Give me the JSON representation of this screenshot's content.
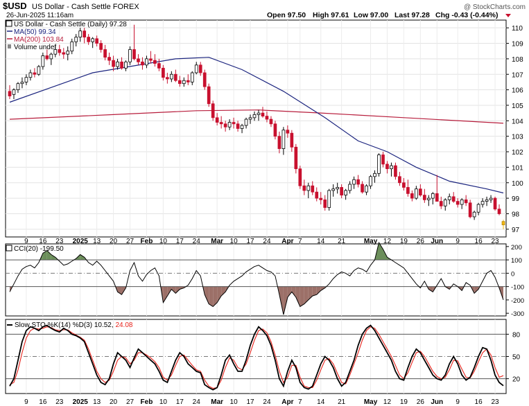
{
  "header": {
    "symbol": "$USD",
    "name": "US Dollar - Cash Settle FOREX",
    "datetime": "26-Jun-2025 11:16am",
    "watermark": "@ StockCharts.com",
    "open": "Open 97.50",
    "high": "High 97.61",
    "low": "Low 97.00",
    "last": "Last 97.28",
    "chg": "Chg -0.43 (-0.44%)"
  },
  "price_legend": {
    "title": "US Dollar - Cash Settle (Daily) 97.28",
    "ma50": "MA(50) 99.34",
    "ma200": "MA(200) 103.84",
    "volume": "Volume undef"
  },
  "cci_legend": "CCI(20) -199.50",
  "sto_legend_k": "Slow STO %K(14) %D(3) 10.52,",
  "sto_legend_d": "24.08",
  "colors": {
    "up": "#ffffff",
    "down": "#c8102e",
    "today": "#f2b90f",
    "ma50": "#1a237e",
    "ma200": "#b71c3b",
    "cci_pos": "#6b8e5a",
    "cci_neg": "#9c7068",
    "sto_k": "#000000",
    "sto_d": "#e8231b"
  },
  "x_axis_labels": [
    "9",
    "16",
    "23",
    "2025",
    "13",
    "20",
    "27",
    "Feb",
    "10",
    "17",
    "24",
    "Mar",
    "10",
    "17",
    "24",
    "Apr",
    "7",
    "14",
    "21",
    "May",
    "12",
    "19",
    "26",
    "Jun",
    "9",
    "16",
    "23"
  ],
  "chart_data": [
    {
      "type": "candlestick",
      "title": "US Dollar - Cash Settle (Daily) 97.28",
      "ylim": [
        96.5,
        110.5
      ],
      "y_ticks": [
        97,
        98,
        99,
        100,
        101,
        102,
        103,
        104,
        105,
        106,
        107,
        108,
        109,
        110
      ],
      "ohlc": [
        [
          105.9,
          106.3,
          105.4,
          105.6
        ],
        [
          105.7,
          106.1,
          105.4,
          106.0
        ],
        [
          106.0,
          106.5,
          105.8,
          106.4
        ],
        [
          106.4,
          106.8,
          106.1,
          106.5
        ],
        [
          106.5,
          107.0,
          106.3,
          106.8
        ],
        [
          106.8,
          107.3,
          106.6,
          107.1
        ],
        [
          107.1,
          107.4,
          106.8,
          107.0
        ],
        [
          107.0,
          107.6,
          106.9,
          107.5
        ],
        [
          107.5,
          108.4,
          107.3,
          108.2
        ],
        [
          108.2,
          108.6,
          107.9,
          108.0
        ],
        [
          108.0,
          108.4,
          107.6,
          108.3
        ],
        [
          108.3,
          108.9,
          108.1,
          108.6
        ],
        [
          108.6,
          108.9,
          108.2,
          108.4
        ],
        [
          108.4,
          108.7,
          108.0,
          108.3
        ],
        [
          108.3,
          108.8,
          107.9,
          108.5
        ],
        [
          108.5,
          109.3,
          108.3,
          109.1
        ],
        [
          109.1,
          109.6,
          108.8,
          109.4
        ],
        [
          109.4,
          110.0,
          109.1,
          109.8
        ],
        [
          109.8,
          110.0,
          109.0,
          109.4
        ],
        [
          109.4,
          109.6,
          108.9,
          109.1
        ],
        [
          109.1,
          109.4,
          108.7,
          109.3
        ],
        [
          109.3,
          109.5,
          108.8,
          109.0
        ],
        [
          109.0,
          109.2,
          108.4,
          108.6
        ],
        [
          108.6,
          108.9,
          107.9,
          108.1
        ],
        [
          108.1,
          108.4,
          107.6,
          107.9
        ],
        [
          107.9,
          108.2,
          107.2,
          107.5
        ],
        [
          107.5,
          108.0,
          107.3,
          107.8
        ],
        [
          107.8,
          108.1,
          107.3,
          107.4
        ],
        [
          107.4,
          107.9,
          107.2,
          107.8
        ],
        [
          107.8,
          108.8,
          107.6,
          108.6
        ],
        [
          108.6,
          110.2,
          107.9,
          108.0
        ],
        [
          108.0,
          108.3,
          107.6,
          107.8
        ],
        [
          107.8,
          108.1,
          107.3,
          107.6
        ],
        [
          107.6,
          108.2,
          107.4,
          108.0
        ],
        [
          108.0,
          108.5,
          107.7,
          107.9
        ],
        [
          107.9,
          108.3,
          107.5,
          107.7
        ],
        [
          107.7,
          108.0,
          107.2,
          107.4
        ],
        [
          107.4,
          107.6,
          106.6,
          106.8
        ],
        [
          106.8,
          107.1,
          106.4,
          106.7
        ],
        [
          106.7,
          107.2,
          106.5,
          107.0
        ],
        [
          107.0,
          107.3,
          106.5,
          106.6
        ],
        [
          106.6,
          106.9,
          106.2,
          106.4
        ],
        [
          106.4,
          106.8,
          106.2,
          106.6
        ],
        [
          106.6,
          107.0,
          106.3,
          106.5
        ],
        [
          106.5,
          107.2,
          106.3,
          107.1
        ],
        [
          107.1,
          107.8,
          107.0,
          107.6
        ],
        [
          107.6,
          107.8,
          106.9,
          107.1
        ],
        [
          107.1,
          107.3,
          106.0,
          106.2
        ],
        [
          106.2,
          106.4,
          104.9,
          105.1
        ],
        [
          105.1,
          105.3,
          104.0,
          104.2
        ],
        [
          104.2,
          104.5,
          103.7,
          103.9
        ],
        [
          103.9,
          104.3,
          103.5,
          103.8
        ],
        [
          103.8,
          104.0,
          103.3,
          103.6
        ],
        [
          103.6,
          104.1,
          103.4,
          103.9
        ],
        [
          103.9,
          104.2,
          103.5,
          103.8
        ],
        [
          103.8,
          104.0,
          103.3,
          103.5
        ],
        [
          103.5,
          103.8,
          103.2,
          103.7
        ],
        [
          103.7,
          104.2,
          103.5,
          104.1
        ],
        [
          104.1,
          104.4,
          103.8,
          104.2
        ],
        [
          104.2,
          104.6,
          104.0,
          104.4
        ],
        [
          104.4,
          104.7,
          104.0,
          104.5
        ],
        [
          104.5,
          104.9,
          104.2,
          104.3
        ],
        [
          104.3,
          104.6,
          103.9,
          104.1
        ],
        [
          104.1,
          104.3,
          103.6,
          103.8
        ],
        [
          103.8,
          104.0,
          102.8,
          103.0
        ],
        [
          103.0,
          103.3,
          101.9,
          102.2
        ],
        [
          102.2,
          103.6,
          101.8,
          103.4
        ],
        [
          103.4,
          103.7,
          102.9,
          103.2
        ],
        [
          103.2,
          103.4,
          102.0,
          102.3
        ],
        [
          102.3,
          102.5,
          100.6,
          100.9
        ],
        [
          100.9,
          101.1,
          99.6,
          99.8
        ],
        [
          99.8,
          100.2,
          99.2,
          99.5
        ],
        [
          99.5,
          100.0,
          99.0,
          99.8
        ],
        [
          99.8,
          100.1,
          99.2,
          99.4
        ],
        [
          99.4,
          99.7,
          98.8,
          99.0
        ],
        [
          99.0,
          99.4,
          98.6,
          98.9
        ],
        [
          98.9,
          99.2,
          98.2,
          98.4
        ],
        [
          98.4,
          99.6,
          98.2,
          99.5
        ],
        [
          99.5,
          99.9,
          99.1,
          99.6
        ],
        [
          99.6,
          100.0,
          99.3,
          99.7
        ],
        [
          99.7,
          99.9,
          99.0,
          99.2
        ],
        [
          99.2,
          99.6,
          98.9,
          99.5
        ],
        [
          99.5,
          100.1,
          99.3,
          99.9
        ],
        [
          99.9,
          100.4,
          99.6,
          100.2
        ],
        [
          100.2,
          100.5,
          99.7,
          99.9
        ],
        [
          99.9,
          100.1,
          99.3,
          99.4
        ],
        [
          99.4,
          99.9,
          99.2,
          99.8
        ],
        [
          99.8,
          100.5,
          99.6,
          100.4
        ],
        [
          100.4,
          100.8,
          100.0,
          100.6
        ],
        [
          100.6,
          101.9,
          100.4,
          101.8
        ],
        [
          101.8,
          102.0,
          101.0,
          101.2
        ],
        [
          101.2,
          101.4,
          100.6,
          100.9
        ],
        [
          100.9,
          101.3,
          100.4,
          101.1
        ],
        [
          101.1,
          101.3,
          100.2,
          100.4
        ],
        [
          100.4,
          100.7,
          99.8,
          100.0
        ],
        [
          100.0,
          100.3,
          99.5,
          99.7
        ],
        [
          99.7,
          100.2,
          99.1,
          99.3
        ],
        [
          99.3,
          99.5,
          98.8,
          99.0
        ],
        [
          99.0,
          99.8,
          98.9,
          99.6
        ],
        [
          99.6,
          99.9,
          99.1,
          99.2
        ],
        [
          99.2,
          99.6,
          98.7,
          98.9
        ],
        [
          98.9,
          99.2,
          98.5,
          99.0
        ],
        [
          99.0,
          99.4,
          98.6,
          99.3
        ],
        [
          99.3,
          100.5,
          98.8,
          98.8
        ],
        [
          98.8,
          99.1,
          98.3,
          98.5
        ],
        [
          98.5,
          99.0,
          98.2,
          98.9
        ],
        [
          98.9,
          99.3,
          98.6,
          99.1
        ],
        [
          99.1,
          99.4,
          98.7,
          98.8
        ],
        [
          98.8,
          99.0,
          98.4,
          98.6
        ],
        [
          98.6,
          99.0,
          98.3,
          98.9
        ],
        [
          98.9,
          99.2,
          98.5,
          98.7
        ],
        [
          98.7,
          98.9,
          97.7,
          97.8
        ],
        [
          97.8,
          98.2,
          97.6,
          98.1
        ],
        [
          98.1,
          98.7,
          97.9,
          98.6
        ],
        [
          98.6,
          99.0,
          98.4,
          98.8
        ],
        [
          98.8,
          99.1,
          98.5,
          98.9
        ],
        [
          98.9,
          99.2,
          98.7,
          99.0
        ],
        [
          99.0,
          99.1,
          98.2,
          98.3
        ],
        [
          98.3,
          98.6,
          97.9,
          98.0
        ],
        [
          97.5,
          97.61,
          97.0,
          97.28
        ]
      ],
      "ma50": [
        [
          0,
          105.2
        ],
        [
          20,
          107.1
        ],
        [
          40,
          108.0
        ],
        [
          48,
          108.1
        ],
        [
          56,
          107.3
        ],
        [
          66,
          105.9
        ],
        [
          76,
          104.2
        ],
        [
          84,
          102.7
        ],
        [
          91,
          102.0
        ],
        [
          98,
          101.0
        ],
        [
          106,
          100.1
        ],
        [
          115,
          99.6
        ],
        [
          119,
          99.34
        ]
      ],
      "ma200": [
        [
          0,
          104.1
        ],
        [
          25,
          104.4
        ],
        [
          45,
          104.65
        ],
        [
          60,
          104.7
        ],
        [
          75,
          104.5
        ],
        [
          95,
          104.2
        ],
        [
          119,
          103.84
        ]
      ]
    },
    {
      "type": "line",
      "title": "CCI(20) -199.50",
      "ylim": [
        -320,
        220
      ],
      "y_ticks": [
        200,
        100,
        0,
        -100,
        -200,
        -300
      ],
      "levels": [
        100,
        0,
        -100
      ],
      "values": [
        -140,
        -80,
        -20,
        30,
        50,
        60,
        40,
        80,
        150,
        170,
        140,
        120,
        90,
        60,
        70,
        90,
        110,
        140,
        120,
        80,
        60,
        90,
        60,
        20,
        -20,
        -60,
        -140,
        -160,
        -110,
        20,
        80,
        -20,
        -60,
        -10,
        20,
        40,
        -20,
        -220,
        -170,
        -120,
        -150,
        -120,
        -110,
        -90,
        -40,
        20,
        -20,
        -160,
        -230,
        -250,
        -220,
        -170,
        -140,
        -90,
        -60,
        -40,
        -20,
        10,
        30,
        50,
        60,
        40,
        20,
        10,
        -20,
        -160,
        -310,
        -180,
        -140,
        -180,
        -250,
        -230,
        -200,
        -170,
        -160,
        -130,
        -110,
        -80,
        -40,
        -10,
        10,
        0,
        -20,
        20,
        40,
        30,
        10,
        60,
        100,
        230,
        180,
        120,
        100,
        80,
        60,
        40,
        0,
        -40,
        -80,
        -110,
        -60,
        -120,
        -140,
        -90,
        -40,
        -100,
        -120,
        -80,
        -100,
        -130,
        -70,
        -90,
        -150,
        -120,
        -60,
        0,
        20,
        -30,
        -110,
        -199.5
      ]
    },
    {
      "type": "line",
      "title": "Slow STO %K(14) %D(3)",
      "ylim": [
        0,
        100
      ],
      "y_ticks": [
        80,
        50,
        20
      ],
      "levels": [
        80,
        50,
        20
      ],
      "k": [
        10,
        20,
        45,
        70,
        85,
        90,
        88,
        85,
        90,
        92,
        88,
        85,
        83,
        88,
        85,
        80,
        78,
        75,
        70,
        55,
        40,
        25,
        15,
        12,
        20,
        40,
        55,
        50,
        45,
        35,
        48,
        60,
        55,
        50,
        45,
        40,
        30,
        18,
        15,
        30,
        45,
        55,
        50,
        40,
        35,
        30,
        28,
        12,
        8,
        5,
        8,
        25,
        45,
        52,
        40,
        30,
        30,
        45,
        65,
        80,
        90,
        85,
        78,
        65,
        45,
        20,
        10,
        30,
        45,
        35,
        15,
        8,
        6,
        10,
        25,
        40,
        50,
        45,
        35,
        20,
        10,
        15,
        30,
        45,
        65,
        80,
        88,
        92,
        85,
        75,
        65,
        55,
        45,
        30,
        20,
        18,
        35,
        50,
        60,
        55,
        45,
        35,
        25,
        20,
        18,
        25,
        40,
        50,
        40,
        25,
        18,
        22,
        35,
        50,
        62,
        60,
        45,
        25,
        15,
        10.52
      ],
      "d": [
        12,
        15,
        32,
        55,
        75,
        85,
        88,
        87,
        88,
        90,
        89,
        86,
        85,
        86,
        86,
        82,
        79,
        76,
        72,
        60,
        45,
        30,
        20,
        15,
        18,
        30,
        45,
        50,
        48,
        40,
        45,
        55,
        55,
        52,
        48,
        43,
        35,
        22,
        18,
        25,
        38,
        50,
        52,
        45,
        38,
        32,
        30,
        18,
        10,
        7,
        8,
        18,
        35,
        48,
        45,
        35,
        32,
        40,
        55,
        72,
        85,
        87,
        82,
        70,
        52,
        30,
        15,
        22,
        38,
        38,
        22,
        10,
        8,
        8,
        18,
        32,
        45,
        47,
        40,
        27,
        15,
        13,
        25,
        40,
        55,
        72,
        85,
        90,
        88,
        80,
        70,
        60,
        50,
        38,
        25,
        20,
        28,
        42,
        55,
        57,
        50,
        40,
        30,
        23,
        20,
        22,
        32,
        45,
        44,
        33,
        22,
        21,
        30,
        43,
        55,
        60,
        52,
        35,
        22,
        24.08
      ]
    }
  ]
}
